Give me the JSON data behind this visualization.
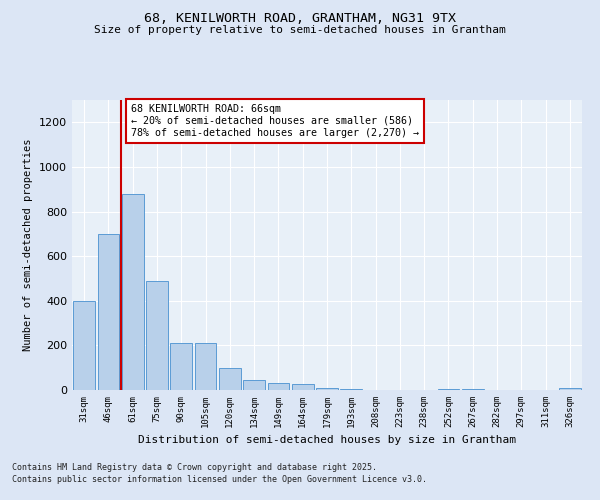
{
  "title1": "68, KENILWORTH ROAD, GRANTHAM, NG31 9TX",
  "title2": "Size of property relative to semi-detached houses in Grantham",
  "xlabel": "Distribution of semi-detached houses by size in Grantham",
  "ylabel": "Number of semi-detached properties",
  "categories": [
    "31sqm",
    "46sqm",
    "61sqm",
    "75sqm",
    "90sqm",
    "105sqm",
    "120sqm",
    "134sqm",
    "149sqm",
    "164sqm",
    "179sqm",
    "193sqm",
    "208sqm",
    "223sqm",
    "238sqm",
    "252sqm",
    "267sqm",
    "282sqm",
    "297sqm",
    "311sqm",
    "326sqm"
  ],
  "values": [
    400,
    700,
    880,
    490,
    210,
    210,
    100,
    45,
    30,
    25,
    10,
    5,
    0,
    0,
    0,
    5,
    5,
    0,
    0,
    0,
    10
  ],
  "bar_color": "#b8d0ea",
  "bar_edge_color": "#5b9bd5",
  "redline_x": 1.5,
  "annotation_title": "68 KENILWORTH ROAD: 66sqm",
  "annotation_line1": "← 20% of semi-detached houses are smaller (586)",
  "annotation_line2": "78% of semi-detached houses are larger (2,270) →",
  "annotation_box_facecolor": "#ffffff",
  "annotation_box_edgecolor": "#cc0000",
  "redline_color": "#cc0000",
  "ylim": [
    0,
    1300
  ],
  "yticks": [
    0,
    200,
    400,
    600,
    800,
    1000,
    1200
  ],
  "grid_color": "#ffffff",
  "footer1": "Contains HM Land Registry data © Crown copyright and database right 2025.",
  "footer2": "Contains public sector information licensed under the Open Government Licence v3.0.",
  "bg_color": "#dce6f5",
  "plot_bg_color": "#e8f0f8"
}
